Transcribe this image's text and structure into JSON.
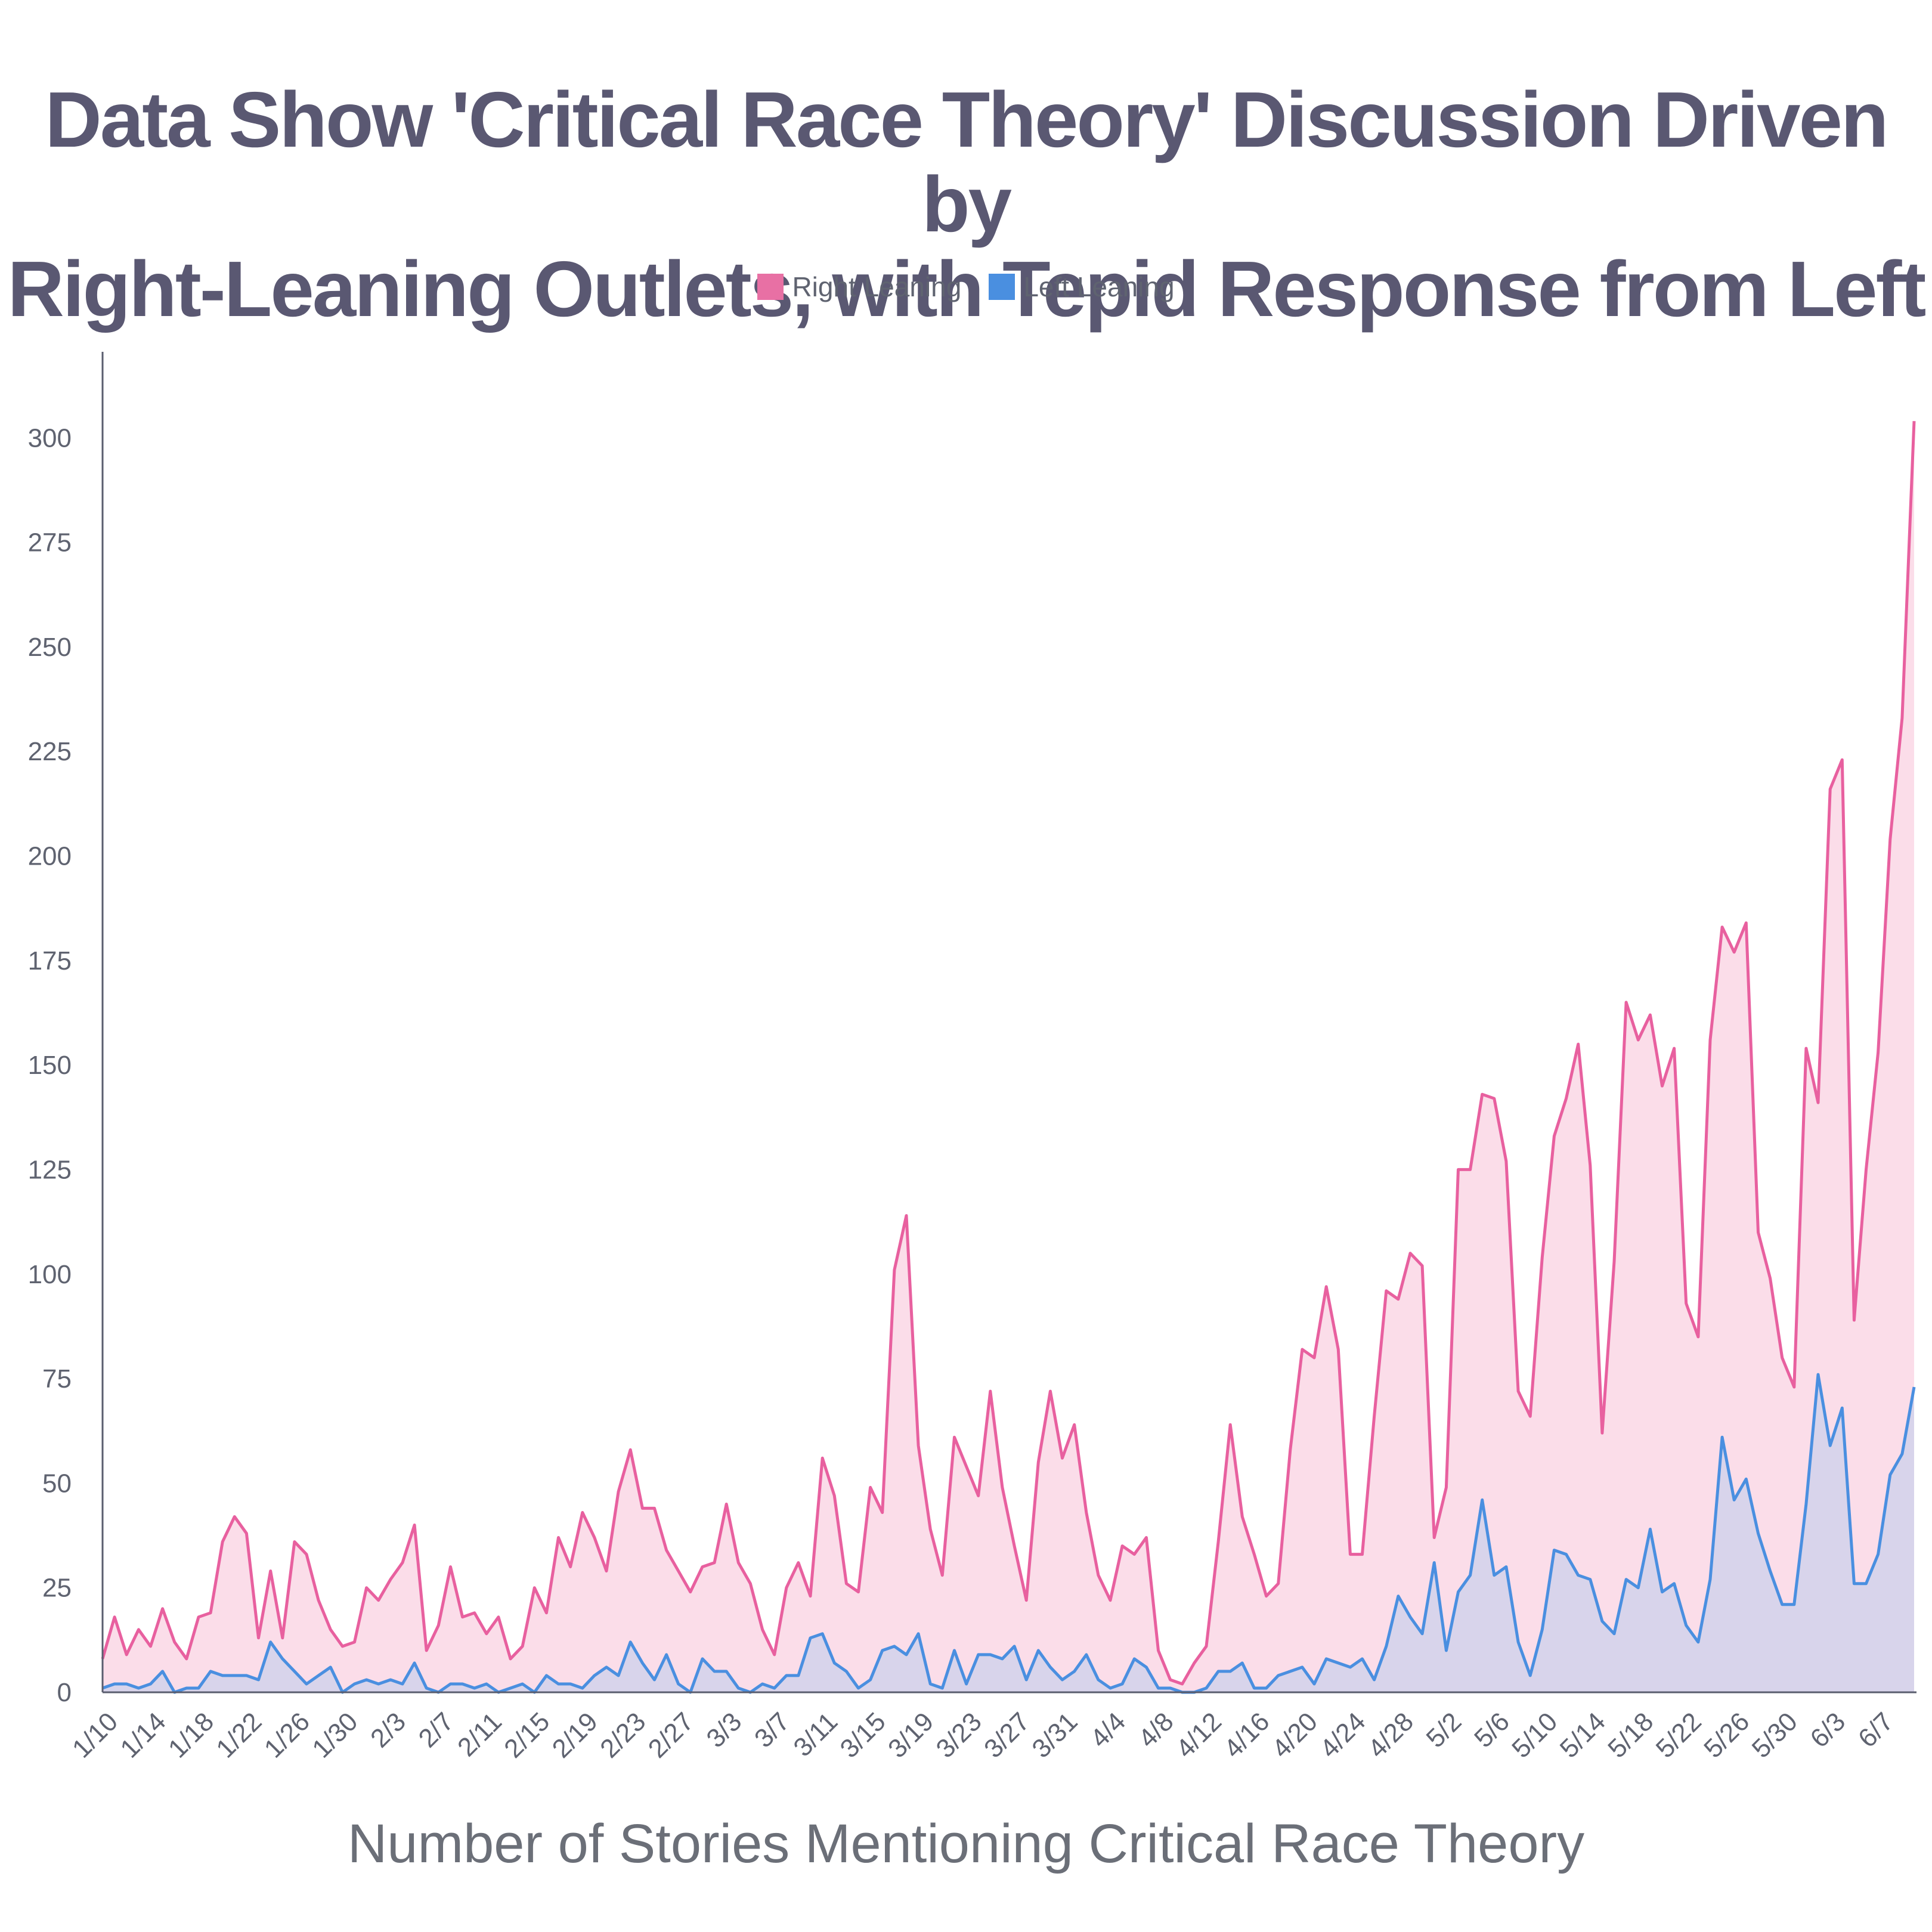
{
  "chart_data": {
    "type": "area",
    "title": "Data Show 'Critical Race Theory' Discussion Driven by\nRight-Leaning Outlets, with Tepid Response from Left",
    "xlabel": "Number of Stories Mentioning Critical Race Theory",
    "ylabel": "",
    "ylim": [
      0,
      320
    ],
    "yticks": [
      0,
      25,
      50,
      75,
      100,
      125,
      150,
      175,
      200,
      225,
      250,
      275,
      300
    ],
    "x_tick_labels": [
      "1/10",
      "1/14",
      "1/18",
      "1/22",
      "1/26",
      "1/30",
      "2/3",
      "2/7",
      "2/11",
      "2/15",
      "2/19",
      "2/23",
      "2/27",
      "3/3",
      "3/7",
      "3/11",
      "3/15",
      "3/19",
      "3/23",
      "3/27",
      "3/31",
      "4/4",
      "4/8",
      "4/12",
      "4/16",
      "4/20",
      "4/24",
      "4/28",
      "5/2",
      "5/6",
      "5/10",
      "5/14",
      "5/18",
      "5/22",
      "5/26",
      "5/30",
      "6/3",
      "6/7"
    ],
    "x_start": "1/10",
    "x_interval_days": 1,
    "legend_position": "top-center",
    "grid": false,
    "series": [
      {
        "name": "Right Leaning",
        "color": "#e8609f",
        "fill": "#fbdde9",
        "values": [
          8,
          18,
          9,
          15,
          11,
          20,
          12,
          8,
          18,
          19,
          36,
          42,
          38,
          13,
          29,
          13,
          36,
          33,
          22,
          15,
          11,
          12,
          25,
          22,
          27,
          31,
          40,
          10,
          16,
          30,
          18,
          19,
          14,
          18,
          8,
          11,
          25,
          19,
          37,
          30,
          43,
          37,
          29,
          48,
          58,
          44,
          44,
          34,
          29,
          24,
          30,
          31,
          45,
          31,
          26,
          15,
          9,
          25,
          31,
          23,
          56,
          47,
          26,
          24,
          49,
          43,
          101,
          114,
          59,
          39,
          28,
          61,
          54,
          47,
          72,
          49,
          35,
          22,
          55,
          72,
          56,
          64,
          43,
          28,
          22,
          35,
          33,
          37,
          10,
          3,
          2,
          7,
          11,
          36,
          64,
          42,
          33,
          23,
          26,
          58,
          82,
          80,
          97,
          82,
          33,
          33,
          66,
          96,
          94,
          105,
          102,
          37,
          49,
          125,
          125,
          143,
          142,
          127,
          72,
          66,
          104,
          133,
          142,
          155,
          126,
          62,
          103,
          165,
          156,
          162,
          145,
          154,
          93,
          85,
          156,
          183,
          177,
          184,
          110,
          99,
          80,
          73,
          154,
          141,
          216,
          223,
          89,
          125,
          153,
          204,
          233,
          304
        ]
      },
      {
        "name": "Left Leaning",
        "color": "#4a8fe0",
        "fill": "#d8d4eb",
        "values": [
          1,
          2,
          2,
          1,
          2,
          5,
          0,
          1,
          1,
          5,
          4,
          4,
          4,
          3,
          12,
          8,
          5,
          2,
          4,
          6,
          0,
          2,
          3,
          2,
          3,
          2,
          7,
          1,
          0,
          2,
          2,
          1,
          2,
          0,
          1,
          2,
          0,
          4,
          2,
          2,
          1,
          4,
          6,
          4,
          12,
          7,
          3,
          9,
          2,
          0,
          8,
          5,
          5,
          1,
          0,
          2,
          1,
          4,
          4,
          13,
          14,
          7,
          5,
          1,
          3,
          10,
          11,
          9,
          14,
          2,
          1,
          10,
          2,
          9,
          9,
          8,
          11,
          3,
          10,
          6,
          3,
          5,
          9,
          3,
          1,
          2,
          8,
          6,
          1,
          1,
          0,
          0,
          1,
          5,
          5,
          7,
          1,
          1,
          4,
          5,
          6,
          2,
          8,
          7,
          6,
          8,
          3,
          11,
          23,
          18,
          14,
          31,
          10,
          24,
          28,
          46,
          28,
          30,
          12,
          4,
          15,
          34,
          33,
          28,
          27,
          17,
          14,
          27,
          25,
          39,
          24,
          26,
          16,
          12,
          27,
          61,
          46,
          51,
          38,
          29,
          21,
          21,
          45,
          76,
          59,
          68,
          26,
          26,
          33,
          52,
          57,
          73
        ]
      }
    ]
  }
}
